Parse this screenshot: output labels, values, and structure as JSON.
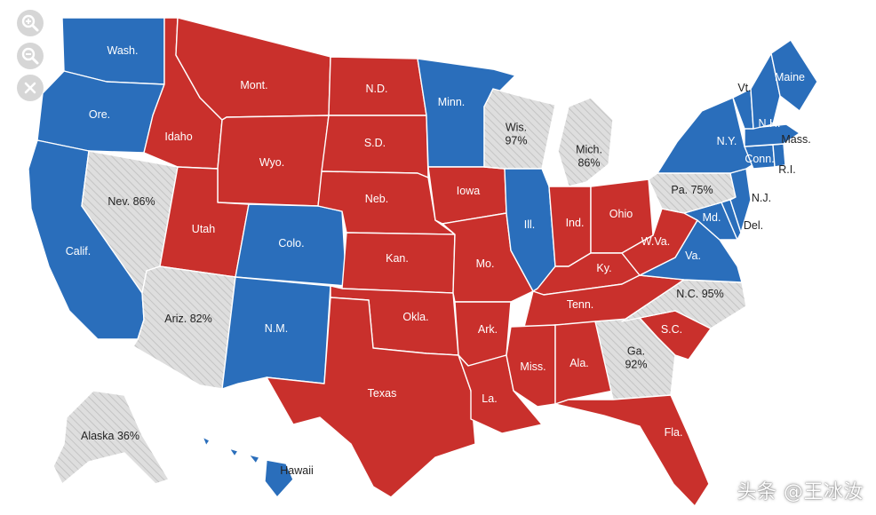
{
  "colors": {
    "dem": "#2a6ebb",
    "gop": "#c9302c",
    "pending": "#dedede",
    "hatch": "#c4c4c4",
    "controls": "#d6d6d6"
  },
  "controls": {
    "zoom_in_icon": "magnifier-plus-icon",
    "zoom_out_icon": "magnifier-minus-icon",
    "close_icon": "close-icon"
  },
  "states": [
    {
      "id": "wa",
      "label": "Wash.",
      "status": "dem"
    },
    {
      "id": "or",
      "label": "Ore.",
      "status": "dem"
    },
    {
      "id": "ca",
      "label": "Calif.",
      "status": "dem"
    },
    {
      "id": "nv",
      "label": "Nev. 86%",
      "status": "pending"
    },
    {
      "id": "id",
      "label": "Idaho",
      "status": "gop"
    },
    {
      "id": "mt",
      "label": "Mont.",
      "status": "gop"
    },
    {
      "id": "wy",
      "label": "Wyo.",
      "status": "gop"
    },
    {
      "id": "ut",
      "label": "Utah",
      "status": "gop"
    },
    {
      "id": "az",
      "label": "Ariz. 82%",
      "status": "pending"
    },
    {
      "id": "co",
      "label": "Colo.",
      "status": "dem"
    },
    {
      "id": "nm",
      "label": "N.M.",
      "status": "dem"
    },
    {
      "id": "nd",
      "label": "N.D.",
      "status": "gop"
    },
    {
      "id": "sd",
      "label": "S.D.",
      "status": "gop"
    },
    {
      "id": "ne",
      "label": "Neb.",
      "status": "gop"
    },
    {
      "id": "ks",
      "label": "Kan.",
      "status": "gop"
    },
    {
      "id": "ok",
      "label": "Okla.",
      "status": "gop"
    },
    {
      "id": "tx",
      "label": "Texas",
      "status": "gop"
    },
    {
      "id": "mn",
      "label": "Minn.",
      "status": "dem"
    },
    {
      "id": "ia",
      "label": "Iowa",
      "status": "gop"
    },
    {
      "id": "mo",
      "label": "Mo.",
      "status": "gop"
    },
    {
      "id": "ar",
      "label": "Ark.",
      "status": "gop"
    },
    {
      "id": "la",
      "label": "La.",
      "status": "gop"
    },
    {
      "id": "wi",
      "label": "Wis.\n97%",
      "status": "pending"
    },
    {
      "id": "il",
      "label": "Ill.",
      "status": "dem"
    },
    {
      "id": "mi",
      "label": "Mich.\n86%",
      "status": "pending"
    },
    {
      "id": "in",
      "label": "Ind.",
      "status": "gop"
    },
    {
      "id": "oh",
      "label": "Ohio",
      "status": "gop"
    },
    {
      "id": "ky",
      "label": "Ky.",
      "status": "gop"
    },
    {
      "id": "tn",
      "label": "Tenn.",
      "status": "gop"
    },
    {
      "id": "ms",
      "label": "Miss.",
      "status": "gop"
    },
    {
      "id": "al",
      "label": "Ala.",
      "status": "gop"
    },
    {
      "id": "ga",
      "label": "Ga.\n92%",
      "status": "pending"
    },
    {
      "id": "fl",
      "label": "Fla.",
      "status": "gop"
    },
    {
      "id": "sc",
      "label": "S.C.",
      "status": "gop"
    },
    {
      "id": "nc",
      "label": "N.C. 95%",
      "status": "pending"
    },
    {
      "id": "va",
      "label": "Va.",
      "status": "dem"
    },
    {
      "id": "wv",
      "label": "W.Va.",
      "status": "gop"
    },
    {
      "id": "md",
      "label": "Md.",
      "status": "dem"
    },
    {
      "id": "de",
      "label": "Del.",
      "status": "dem"
    },
    {
      "id": "pa",
      "label": "Pa. 75%",
      "status": "pending"
    },
    {
      "id": "nj",
      "label": "N.J.",
      "status": "dem"
    },
    {
      "id": "ny",
      "label": "N.Y.",
      "status": "dem"
    },
    {
      "id": "ct",
      "label": "Conn.",
      "status": "dem"
    },
    {
      "id": "ri",
      "label": "R.I.",
      "status": "dem"
    },
    {
      "id": "ma",
      "label": "Mass.",
      "status": "dem"
    },
    {
      "id": "vt",
      "label": "Vt.",
      "status": "dem"
    },
    {
      "id": "nh",
      "label": "N.H.",
      "status": "dem"
    },
    {
      "id": "me",
      "label": "Maine",
      "status": "dem"
    },
    {
      "id": "ak",
      "label": "Alaska 36%",
      "status": "pending"
    },
    {
      "id": "hi",
      "label": "Hawaii",
      "status": "dem"
    }
  ],
  "watermark": "头条 @王冰汝"
}
